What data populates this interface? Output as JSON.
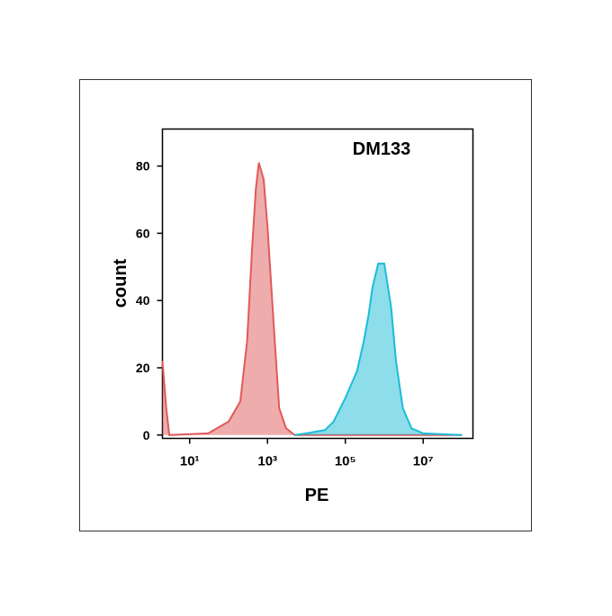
{
  "chart_data": {
    "type": "area",
    "annotation": "DM133",
    "xlabel": "PE",
    "ylabel": "count",
    "xscale": "log",
    "xlim": [
      2,
      190000000
    ],
    "ylim": [
      -1,
      91
    ],
    "xticks": [
      {
        "value": 10,
        "label": "10¹"
      },
      {
        "value": 1000,
        "label": "10³"
      },
      {
        "value": 100000,
        "label": "10⁵"
      },
      {
        "value": 10000000,
        "label": "10⁷"
      }
    ],
    "yticks": [
      0,
      20,
      40,
      60,
      80
    ],
    "series": [
      {
        "color": "#e05a5a",
        "x": [
          2,
          2.5,
          3,
          30,
          100,
          200,
          300,
          400,
          500,
          600,
          800,
          1000,
          1500,
          2000,
          3000,
          5000,
          100000000
        ],
        "values": [
          22,
          8,
          0,
          0.5,
          4,
          10,
          28,
          55,
          73,
          81,
          76,
          62,
          30,
          8,
          2,
          0,
          0
        ]
      },
      {
        "color": "#1cbcd8",
        "x": [
          5000,
          10000,
          30000,
          50000,
          100000,
          200000,
          300000,
          400000,
          500000,
          700000,
          1000000,
          1500000,
          2000000,
          3000000,
          5000000,
          10000000,
          100000000
        ],
        "values": [
          0,
          0.5,
          1.5,
          4,
          11,
          19,
          28,
          36,
          44,
          51,
          51,
          38,
          22,
          8,
          2,
          0.5,
          0
        ]
      }
    ]
  }
}
